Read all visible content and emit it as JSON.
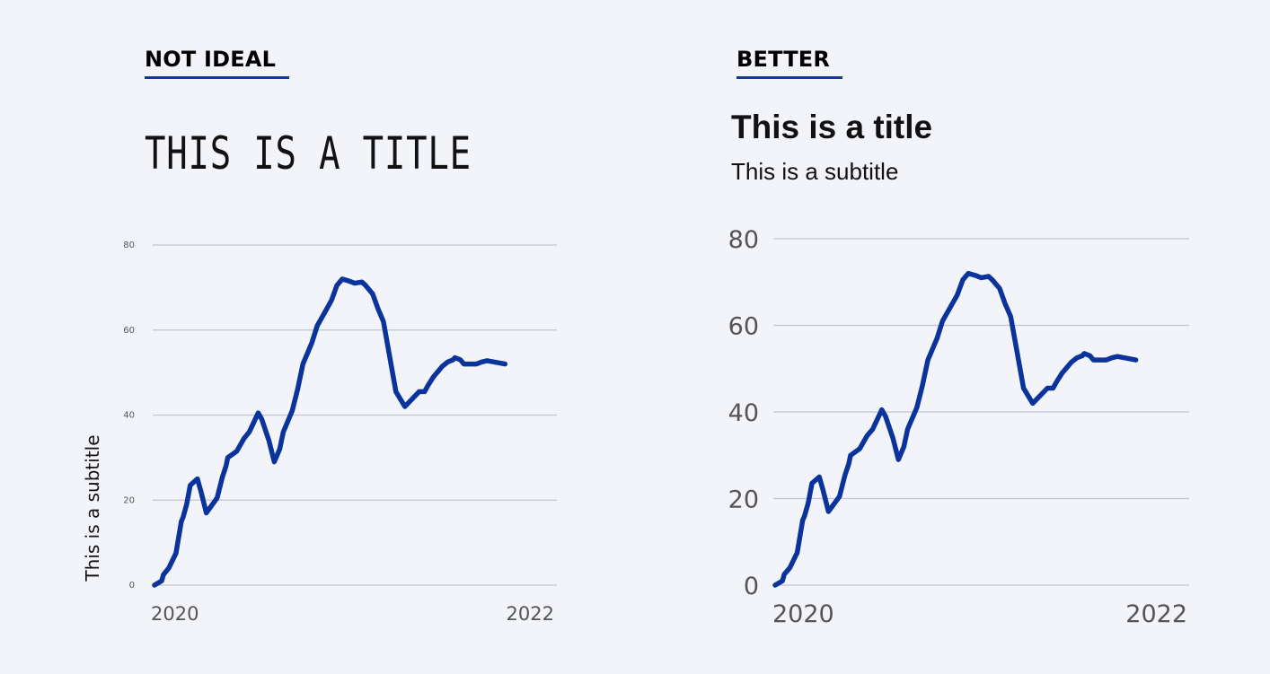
{
  "left": {
    "heading": "NOT IDEAL",
    "title": "THIS IS A TITLE",
    "subtitle": "This is a subtitle"
  },
  "right": {
    "heading": "BETTER",
    "title": "This is a title",
    "subtitle": "This is a subtitle"
  },
  "colors": {
    "background": "#f3f4f9",
    "line": "#0a349b",
    "underline": "#0d3a9a",
    "grid": "#c4c5cc",
    "tick_text": "#555555"
  },
  "chart_data": [
    {
      "type": "line",
      "title": "THIS IS A TITLE",
      "ylabel": "This is a subtitle",
      "xlim": [
        2020.0,
        2022.25
      ],
      "ylim": [
        0,
        80
      ],
      "yticks": [
        0,
        20,
        40,
        60,
        80
      ],
      "xtick_labels": [
        "2020",
        "2022"
      ],
      "grid": true,
      "series": [
        {
          "x": [
            2020.0,
            2020.04,
            2020.05,
            2020.08,
            2020.12,
            2020.15,
            2020.16,
            2020.18,
            2020.2,
            2020.24,
            2020.26,
            2020.29,
            2020.35,
            2020.38,
            2020.4,
            2020.41,
            2020.46,
            2020.5,
            2020.53,
            2020.58,
            2020.6,
            2020.64,
            2020.67,
            2020.7,
            2020.72,
            2020.77,
            2020.8,
            2020.83,
            2020.88,
            2020.91,
            2020.95,
            2020.99,
            2021.02,
            2021.05,
            2021.09,
            2021.12,
            2021.16,
            2021.18,
            2021.22,
            2021.25,
            2021.28,
            2021.35,
            2021.4,
            2021.48,
            2021.51,
            2021.53,
            2021.56,
            2021.58,
            2021.59,
            2021.61,
            2021.64,
            2021.67,
            2021.68,
            2021.71,
            2021.73,
            2021.8,
            2021.83,
            2021.86,
            2021.96
          ],
          "y": [
            0,
            1,
            2.5,
            4,
            7.5,
            15,
            16,
            19,
            23.5,
            25,
            22,
            17,
            20.5,
            25.5,
            28,
            30,
            31.5,
            34.5,
            36,
            40.5,
            39,
            34,
            29,
            32,
            36,
            41,
            46,
            52,
            57,
            61,
            64,
            67,
            70.5,
            72,
            71.5,
            71,
            71.3,
            70.5,
            68.5,
            65,
            62,
            45.5,
            42,
            45.5,
            45.5,
            47,
            49,
            50,
            50.5,
            51.5,
            52.5,
            53,
            53.5,
            53,
            52,
            52,
            52.5,
            52.8,
            52
          ]
        }
      ]
    },
    {
      "type": "line",
      "title": "This is a title",
      "subtitle": "This is a subtitle",
      "xlim": [
        2020.0,
        2022.25
      ],
      "ylim": [
        0,
        80
      ],
      "yticks": [
        0,
        20,
        40,
        60,
        80
      ],
      "xtick_labels": [
        "2020",
        "2022"
      ],
      "grid": true,
      "series": [
        {
          "x": [
            2020.0,
            2020.04,
            2020.05,
            2020.08,
            2020.12,
            2020.15,
            2020.16,
            2020.18,
            2020.2,
            2020.24,
            2020.26,
            2020.29,
            2020.35,
            2020.38,
            2020.4,
            2020.41,
            2020.46,
            2020.5,
            2020.53,
            2020.58,
            2020.6,
            2020.64,
            2020.67,
            2020.7,
            2020.72,
            2020.77,
            2020.8,
            2020.83,
            2020.88,
            2020.91,
            2020.95,
            2020.99,
            2021.02,
            2021.05,
            2021.09,
            2021.12,
            2021.16,
            2021.18,
            2021.22,
            2021.25,
            2021.28,
            2021.35,
            2021.4,
            2021.48,
            2021.51,
            2021.53,
            2021.56,
            2021.58,
            2021.59,
            2021.61,
            2021.64,
            2021.67,
            2021.68,
            2021.71,
            2021.73,
            2021.8,
            2021.83,
            2021.86,
            2021.96
          ],
          "y": [
            0,
            1,
            2.5,
            4,
            7.5,
            15,
            16,
            19,
            23.5,
            25,
            22,
            17,
            20.5,
            25.5,
            28,
            30,
            31.5,
            34.5,
            36,
            40.5,
            39,
            34,
            29,
            32,
            36,
            41,
            46,
            52,
            57,
            61,
            64,
            67,
            70.5,
            72,
            71.5,
            71,
            71.3,
            70.5,
            68.5,
            65,
            62,
            45.5,
            42,
            45.5,
            45.5,
            47,
            49,
            50,
            50.5,
            51.5,
            52.5,
            53,
            53.5,
            53,
            52,
            52,
            52.5,
            52.8,
            52
          ]
        }
      ]
    }
  ]
}
